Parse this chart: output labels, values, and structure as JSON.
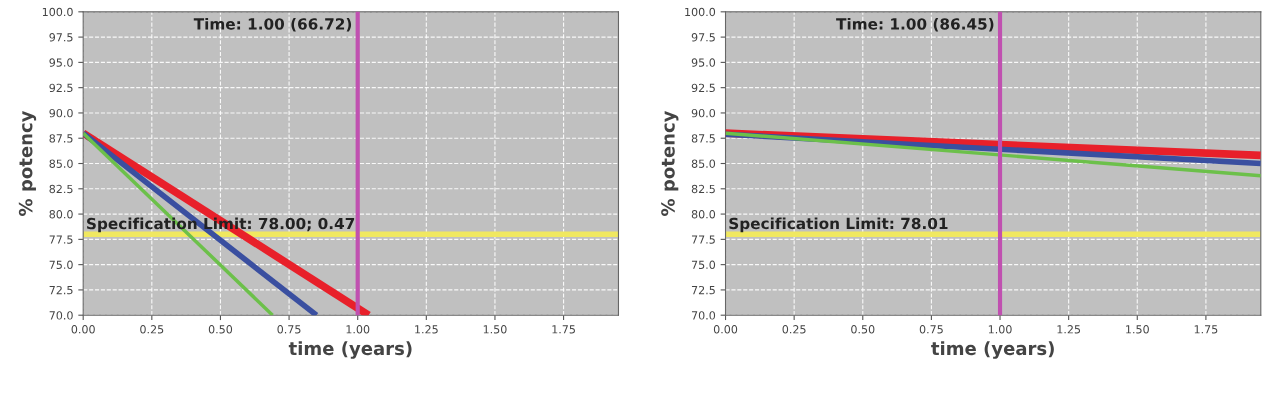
{
  "chart_data": [
    {
      "type": "line",
      "xlabel": "time (years)",
      "ylabel": "% potency",
      "xlim": [
        0,
        1.95
      ],
      "ylim": [
        70,
        100
      ],
      "xticks": [
        {
          "value": 0,
          "label": "0.00"
        },
        {
          "value": 0.25,
          "label": "0.25"
        },
        {
          "value": 0.5,
          "label": "0.50"
        },
        {
          "value": 0.75,
          "label": "0.75"
        },
        {
          "value": 1,
          "label": "1.00"
        },
        {
          "value": 1.25,
          "label": "1.25"
        },
        {
          "value": 1.5,
          "label": "1.50"
        },
        {
          "value": 1.75,
          "label": "1.75"
        }
      ],
      "yticks": [
        {
          "value": 70,
          "label": "70.0"
        },
        {
          "value": 72.5,
          "label": "72.5"
        },
        {
          "value": 75,
          "label": "75.0"
        },
        {
          "value": 77.5,
          "label": "77.5"
        },
        {
          "value": 80,
          "label": "80.0"
        },
        {
          "value": 82.5,
          "label": "82.5"
        },
        {
          "value": 85,
          "label": "85.0"
        },
        {
          "value": 87.5,
          "label": "87.5"
        },
        {
          "value": 90,
          "label": "90.0"
        },
        {
          "value": 92.5,
          "label": "92.5"
        },
        {
          "value": 95,
          "label": "95.0"
        },
        {
          "value": 97.5,
          "label": "97.5"
        },
        {
          "value": 100,
          "label": "100.0"
        }
      ],
      "grid": true,
      "series": [
        {
          "color": "#e8202a",
          "x": [
            0,
            1.04
          ],
          "values": [
            88.0,
            70.0
          ]
        },
        {
          "color": "#3a4fa0",
          "x": [
            0,
            0.85
          ],
          "values": [
            88.0,
            70.0
          ]
        },
        {
          "color": "#6cc04a",
          "x": [
            0,
            0.69
          ],
          "values": [
            88.0,
            70.0
          ]
        }
      ],
      "ref_lines": [
        {
          "axis": "x",
          "value": 1,
          "label": "Time: 1.00 (66.72)",
          "color": "#c050b0"
        },
        {
          "axis": "y",
          "value": 78,
          "label": "Specification Limit: 78.00; 0.47",
          "color": "#f0e860"
        }
      ]
    },
    {
      "type": "line",
      "xlabel": "time (years)",
      "ylabel": "% potency",
      "xlim": [
        0,
        1.95
      ],
      "ylim": [
        70,
        100
      ],
      "xticks": [
        {
          "value": 0,
          "label": "0.00"
        },
        {
          "value": 0.25,
          "label": "0.25"
        },
        {
          "value": 0.5,
          "label": "0.50"
        },
        {
          "value": 0.75,
          "label": "0.75"
        },
        {
          "value": 1,
          "label": "1.00"
        },
        {
          "value": 1.25,
          "label": "1.25"
        },
        {
          "value": 1.5,
          "label": "1.50"
        },
        {
          "value": 1.75,
          "label": "1.75"
        }
      ],
      "yticks": [
        {
          "value": 70,
          "label": "70.0"
        },
        {
          "value": 72.5,
          "label": "72.5"
        },
        {
          "value": 75,
          "label": "75.0"
        },
        {
          "value": 77.5,
          "label": "77.5"
        },
        {
          "value": 80,
          "label": "80.0"
        },
        {
          "value": 82.5,
          "label": "82.5"
        },
        {
          "value": 85,
          "label": "85.0"
        },
        {
          "value": 87.5,
          "label": "87.5"
        },
        {
          "value": 90,
          "label": "90.0"
        },
        {
          "value": 92.5,
          "label": "92.5"
        },
        {
          "value": 95,
          "label": "95.0"
        },
        {
          "value": 97.5,
          "label": "97.5"
        },
        {
          "value": 100,
          "label": "100.0"
        }
      ],
      "grid": true,
      "series": [
        {
          "color": "#e8202a",
          "x": [
            0,
            1.95
          ],
          "values": [
            88.0,
            85.8
          ]
        },
        {
          "color": "#3a4fa0",
          "x": [
            0,
            1.95
          ],
          "values": [
            87.9,
            85.0
          ]
        },
        {
          "color": "#6cc04a",
          "x": [
            0,
            1.95
          ],
          "values": [
            88.0,
            83.8
          ]
        }
      ],
      "ref_lines": [
        {
          "axis": "x",
          "value": 1,
          "label": "Time: 1.00 (86.45)",
          "color": "#c050b0"
        },
        {
          "axis": "y",
          "value": 78.01,
          "label": "Specification Limit: 78.01",
          "color": "#f0e860"
        }
      ]
    }
  ]
}
